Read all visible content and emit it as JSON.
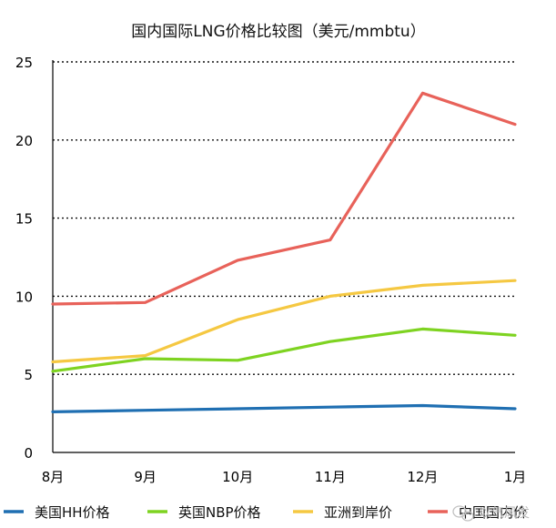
{
  "chart_data": {
    "type": "line",
    "title": "国内国际LNG价格比较图（美元/mmbtu）",
    "xlabel": "",
    "ylabel": "",
    "categories": [
      "8月",
      "9月",
      "10月",
      "11月",
      "12月",
      "1月"
    ],
    "ylim": [
      0,
      25
    ],
    "yticks": [
      0,
      5,
      10,
      15,
      20,
      25
    ],
    "grid": "horizontal-dotted",
    "legend_position": "bottom",
    "series": [
      {
        "name": "美国HH价格",
        "color": "#1f6fb2",
        "values": [
          2.6,
          2.7,
          2.8,
          2.9,
          3.0,
          2.8
        ]
      },
      {
        "name": "英国NBP价格",
        "color": "#7ed321",
        "values": [
          5.2,
          6.0,
          5.9,
          7.1,
          7.9,
          7.5
        ]
      },
      {
        "name": "亚洲到岸价",
        "color": "#f5c842",
        "values": [
          5.8,
          6.2,
          8.5,
          10.0,
          10.7,
          11.0
        ]
      },
      {
        "name": "中国国内价",
        "color": "#e8625a",
        "values": [
          9.5,
          9.6,
          12.3,
          13.6,
          23.0,
          21.0
        ]
      }
    ]
  },
  "watermark": {
    "text": "以气风发",
    "icon": "wechat-icon"
  }
}
